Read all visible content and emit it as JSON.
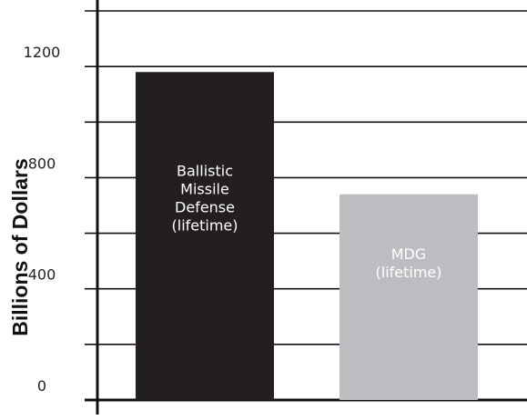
{
  "chart_data": {
    "type": "bar",
    "title": "",
    "xlabel": "",
    "ylabel": "Billions of Dollars",
    "ylim": [
      0,
      1400
    ],
    "yticks_labeled": [
      0,
      400,
      800,
      1200
    ],
    "gridlines": [
      0,
      200,
      400,
      600,
      800,
      1000,
      1200,
      1400
    ],
    "grid": true,
    "categories": [
      "Ballistic Missile Defense (lifetime)",
      "MDG (lifetime)"
    ],
    "values": [
      1180,
      740
    ],
    "bar_labels": [
      [
        "Ballistic",
        "Missile",
        "Defense",
        "(lifetime)"
      ],
      [
        "MDG",
        "(lifetime)"
      ]
    ],
    "colors": [
      "#231f20",
      "#bcbdc0"
    ],
    "label_colors": [
      "#ffffff",
      "#ffffff"
    ]
  }
}
